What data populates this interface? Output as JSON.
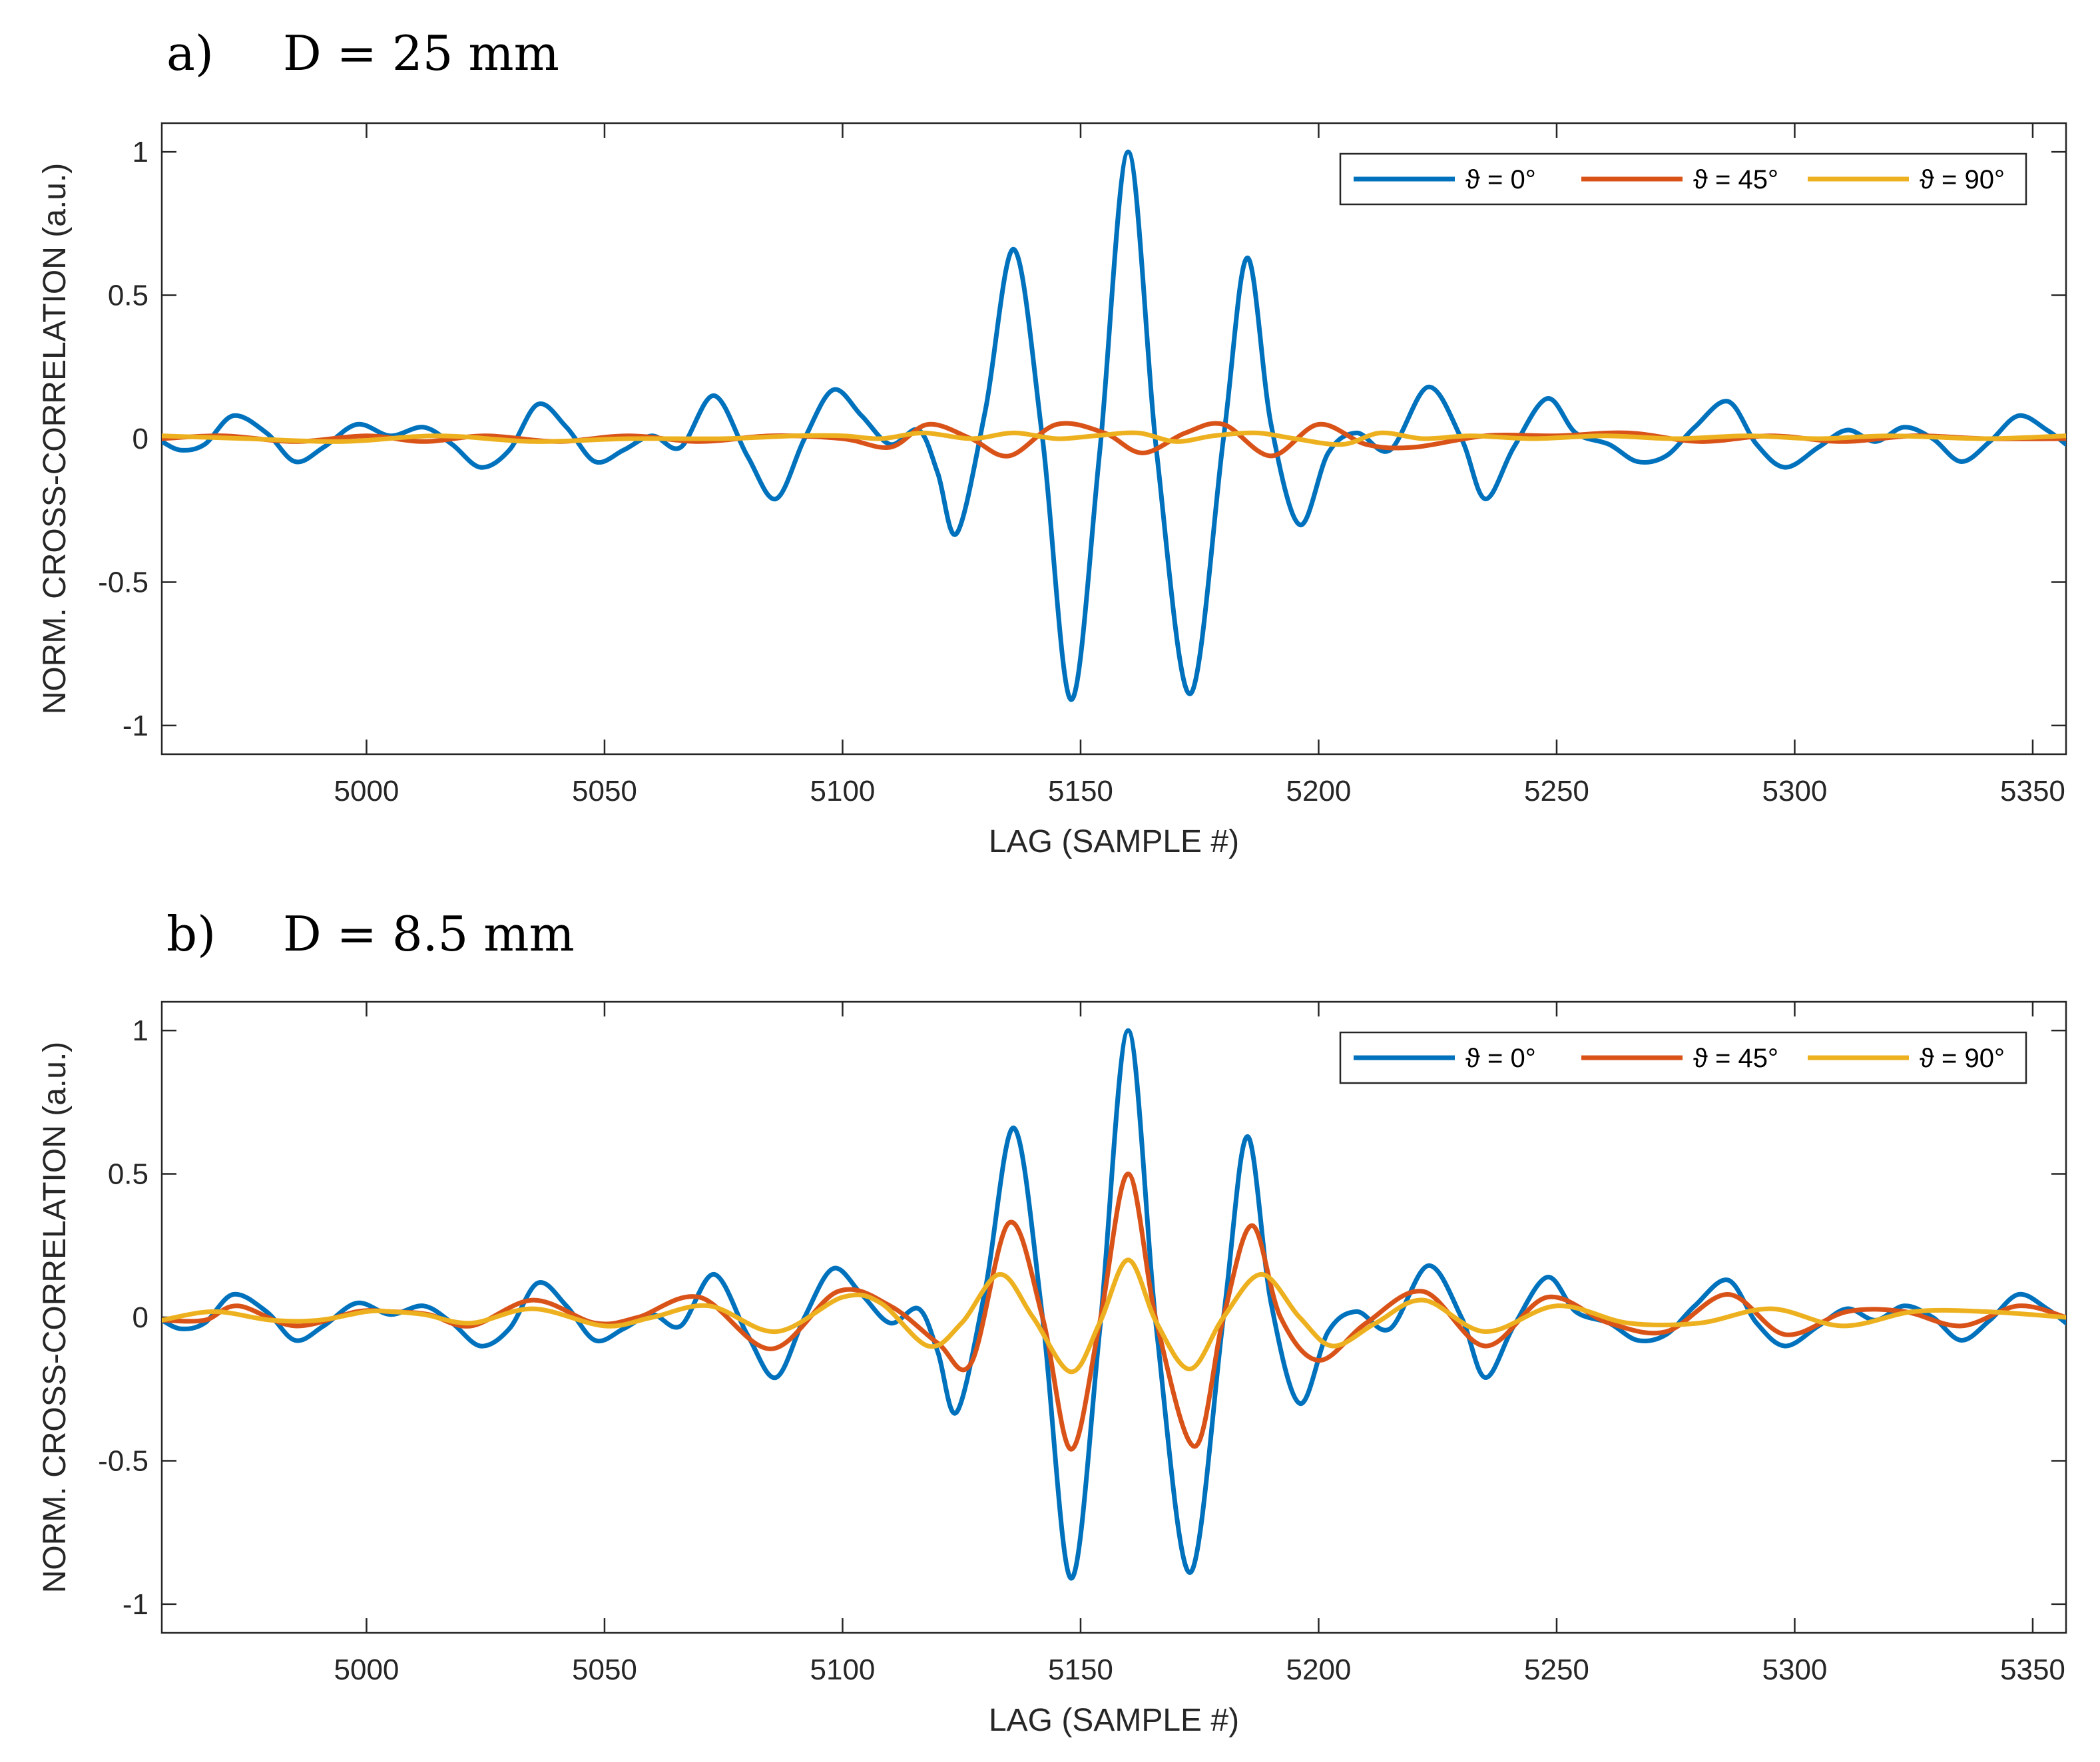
{
  "chart_data": [
    {
      "type": "line",
      "panel_label": "a)",
      "title": "D = 25 mm",
      "xlabel": "LAG (SAMPLE #)",
      "ylabel": "NORM. CROSS-CORRELATION (a.u.)",
      "xlim": [
        4957,
        5357
      ],
      "ylim": [
        -1.1,
        1.1
      ],
      "xticks": [
        5000,
        5050,
        5100,
        5150,
        5200,
        5250,
        5300,
        5350
      ],
      "yticks": [
        -1,
        -0.5,
        0,
        0.5,
        1
      ],
      "ytick_labels": [
        "-1",
        "-0.5",
        "0",
        "0.5",
        "1"
      ],
      "grid": false,
      "legend_position": "top-right",
      "series": [
        {
          "name": "ϑ = 0°",
          "color": "#0072BD",
          "x": [
            4957,
            4961,
            4966,
            4972,
            4979,
            4985,
            4991,
            4998,
            5005,
            5012,
            5018,
            5024,
            5030,
            5036,
            5042,
            5048,
            5054,
            5060,
            5066,
            5073,
            5080,
            5086,
            5092,
            5098,
            5104,
            5110,
            5116,
            5120,
            5124,
            5130,
            5136,
            5142,
            5148,
            5154,
            5160,
            5166,
            5173,
            5180,
            5185,
            5190,
            5196,
            5202,
            5208,
            5215,
            5223,
            5230,
            5235,
            5241,
            5248,
            5254,
            5261,
            5267,
            5273,
            5279,
            5286,
            5292,
            5298,
            5305,
            5311,
            5317,
            5323,
            5329,
            5335,
            5341,
            5347,
            5353,
            5357
          ],
          "y": [
            -0.01,
            -0.04,
            -0.02,
            0.08,
            0.02,
            -0.08,
            -0.03,
            0.05,
            0.01,
            0.04,
            -0.02,
            -0.1,
            -0.04,
            0.12,
            0.04,
            -0.08,
            -0.04,
            0.01,
            -0.03,
            0.15,
            -0.06,
            -0.21,
            0.0,
            0.17,
            0.08,
            -0.02,
            0.03,
            -0.12,
            -0.33,
            0.1,
            0.66,
            0.0,
            -0.91,
            -0.05,
            1.0,
            -0.05,
            -0.89,
            0.0,
            0.63,
            0.05,
            -0.3,
            -0.05,
            0.02,
            -0.04,
            0.18,
            0.0,
            -0.21,
            -0.03,
            0.14,
            0.02,
            -0.02,
            -0.08,
            -0.06,
            0.04,
            0.13,
            -0.02,
            -0.1,
            -0.03,
            0.03,
            -0.01,
            0.04,
            0.0,
            -0.08,
            -0.01,
            0.08,
            0.03,
            -0.02
          ]
        },
        {
          "name": "ϑ = 45°",
          "color": "#D95319",
          "x": [
            4957,
            4970,
            4985,
            5000,
            5012,
            5025,
            5040,
            5055,
            5070,
            5085,
            5100,
            5110,
            5118,
            5127,
            5135,
            5145,
            5155,
            5163,
            5172,
            5180,
            5190,
            5200,
            5210,
            5220,
            5235,
            5250,
            5265,
            5280,
            5295,
            5310,
            5325,
            5340,
            5357
          ],
          "y": [
            0.0,
            0.01,
            -0.01,
            0.01,
            -0.01,
            0.01,
            -0.01,
            0.01,
            -0.01,
            0.01,
            0.0,
            -0.03,
            0.05,
            0.0,
            -0.06,
            0.05,
            0.02,
            -0.05,
            0.02,
            0.05,
            -0.06,
            0.05,
            -0.02,
            -0.03,
            0.01,
            0.01,
            0.02,
            -0.01,
            0.01,
            -0.01,
            0.01,
            0.0,
            0.0
          ]
        },
        {
          "name": "ϑ = 90°",
          "color": "#EDB120",
          "x": [
            4957,
            4975,
            4995,
            5015,
            5035,
            5055,
            5075,
            5090,
            5100,
            5108,
            5117,
            5127,
            5136,
            5145,
            5153,
            5162,
            5170,
            5178,
            5187,
            5195,
            5205,
            5213,
            5222,
            5232,
            5245,
            5260,
            5275,
            5290,
            5305,
            5320,
            5340,
            5357
          ],
          "y": [
            0.01,
            0.0,
            -0.01,
            0.01,
            -0.01,
            0.0,
            0.0,
            0.01,
            0.01,
            0.0,
            0.02,
            0.0,
            0.02,
            0.0,
            0.01,
            0.02,
            -0.01,
            0.01,
            0.02,
            0.0,
            -0.02,
            0.02,
            0.0,
            0.01,
            0.0,
            0.01,
            0.0,
            0.01,
            0.0,
            0.01,
            0.0,
            0.01
          ]
        }
      ]
    },
    {
      "type": "line",
      "panel_label": "b)",
      "title": "D = 8.5 mm",
      "xlabel": "LAG (SAMPLE #)",
      "ylabel": "NORM. CROSS-CORRELATION (a.u.)",
      "xlim": [
        4957,
        5357
      ],
      "ylim": [
        -1.1,
        1.1
      ],
      "xticks": [
        5000,
        5050,
        5100,
        5150,
        5200,
        5250,
        5300,
        5350
      ],
      "yticks": [
        -1,
        -0.5,
        0,
        0.5,
        1
      ],
      "ytick_labels": [
        "-1",
        "-0.5",
        "0",
        "0.5",
        "1"
      ],
      "grid": false,
      "legend_position": "top-right",
      "series": [
        {
          "name": "ϑ = 0°",
          "color": "#0072BD",
          "x": [
            4957,
            4961,
            4966,
            4972,
            4979,
            4985,
            4991,
            4998,
            5005,
            5012,
            5018,
            5024,
            5030,
            5036,
            5042,
            5048,
            5054,
            5060,
            5066,
            5073,
            5080,
            5086,
            5092,
            5098,
            5104,
            5110,
            5116,
            5120,
            5124,
            5130,
            5136,
            5142,
            5148,
            5154,
            5160,
            5166,
            5173,
            5180,
            5185,
            5190,
            5196,
            5202,
            5208,
            5215,
            5223,
            5230,
            5235,
            5241,
            5248,
            5254,
            5261,
            5267,
            5273,
            5279,
            5286,
            5292,
            5298,
            5305,
            5311,
            5317,
            5323,
            5329,
            5335,
            5341,
            5347,
            5353,
            5357
          ],
          "y": [
            -0.01,
            -0.04,
            -0.02,
            0.08,
            0.02,
            -0.08,
            -0.03,
            0.05,
            0.01,
            0.04,
            -0.02,
            -0.1,
            -0.04,
            0.12,
            0.04,
            -0.08,
            -0.04,
            0.01,
            -0.03,
            0.15,
            -0.06,
            -0.21,
            0.0,
            0.17,
            0.08,
            -0.02,
            0.03,
            -0.12,
            -0.33,
            0.1,
            0.66,
            0.0,
            -0.91,
            -0.05,
            1.0,
            -0.05,
            -0.89,
            0.0,
            0.63,
            0.05,
            -0.3,
            -0.05,
            0.02,
            -0.04,
            0.18,
            0.0,
            -0.21,
            -0.03,
            0.14,
            0.02,
            -0.02,
            -0.08,
            -0.06,
            0.04,
            0.13,
            -0.02,
            -0.1,
            -0.03,
            0.03,
            -0.01,
            0.04,
            0.0,
            -0.08,
            -0.01,
            0.08,
            0.03,
            -0.02
          ]
        },
        {
          "name": "ϑ = 45°",
          "color": "#D95319",
          "x": [
            4957,
            4966,
            4973,
            4985,
            4998,
            5005,
            5013,
            5022,
            5035,
            5048,
            5057,
            5070,
            5085,
            5099,
            5110,
            5120,
            5127,
            5135,
            5142,
            5148,
            5154,
            5160,
            5166,
            5174,
            5180,
            5186,
            5192,
            5200,
            5210,
            5222,
            5235,
            5248,
            5261,
            5273,
            5286,
            5298,
            5311,
            5323,
            5335,
            5347,
            5357
          ],
          "y": [
            -0.01,
            -0.01,
            0.04,
            -0.03,
            0.02,
            0.02,
            0.01,
            -0.03,
            0.06,
            -0.02,
            0.0,
            0.07,
            -0.11,
            0.09,
            0.04,
            -0.09,
            -0.16,
            0.33,
            0.0,
            -0.46,
            -0.02,
            0.5,
            -0.02,
            -0.45,
            0.0,
            0.32,
            0.0,
            -0.15,
            -0.02,
            0.09,
            -0.1,
            0.07,
            -0.02,
            -0.05,
            0.08,
            -0.06,
            0.02,
            0.02,
            -0.03,
            0.04,
            0.0
          ]
        },
        {
          "name": "ϑ = 90°",
          "color": "#EDB120",
          "x": [
            4957,
            4968,
            4980,
            4990,
            5000,
            5005,
            5012,
            5022,
            5035,
            5050,
            5060,
            5072,
            5086,
            5100,
            5108,
            5118,
            5125,
            5133,
            5140,
            5148,
            5154,
            5160,
            5166,
            5173,
            5180,
            5188,
            5196,
            5203,
            5212,
            5222,
            5235,
            5250,
            5265,
            5280,
            5295,
            5310,
            5325,
            5340,
            5357
          ],
          "y": [
            -0.01,
            0.02,
            -0.01,
            -0.01,
            0.02,
            0.02,
            0.01,
            -0.02,
            0.03,
            -0.03,
            0.0,
            0.04,
            -0.05,
            0.07,
            0.05,
            -0.1,
            -0.02,
            0.15,
            0.0,
            -0.19,
            -0.02,
            0.2,
            -0.02,
            -0.18,
            0.0,
            0.15,
            0.0,
            -0.1,
            -0.02,
            0.06,
            -0.05,
            0.04,
            -0.02,
            -0.02,
            0.03,
            -0.03,
            0.02,
            0.02,
            0.0
          ]
        }
      ]
    }
  ]
}
